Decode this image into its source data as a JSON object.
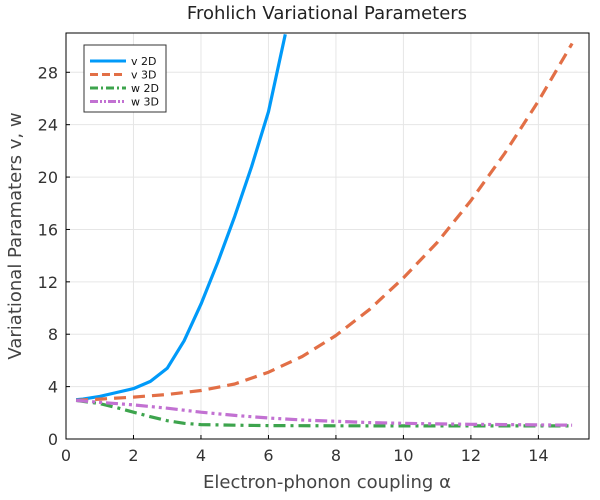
{
  "chart_data": {
    "type": "line",
    "title": "Frohlich Variational Parameters",
    "xlabel": "Electron-phonon coupling α",
    "ylabel": "Variational Paramaters v, w",
    "xlim": [
      0,
      15.5
    ],
    "ylim": [
      0,
      31
    ],
    "xticks": [
      0,
      2,
      4,
      6,
      8,
      10,
      12,
      14
    ],
    "yticks": [
      0,
      4,
      8,
      12,
      16,
      20,
      24,
      28
    ],
    "grid": true,
    "legend_position": "top-left",
    "series": [
      {
        "name": "v 2D",
        "color": "#009af9",
        "style": "solid",
        "x": [
          0.3,
          0.5,
          1.0,
          1.5,
          2.0,
          2.5,
          3.0,
          3.5,
          4.0,
          4.5,
          5.0,
          5.5,
          6.0,
          6.5
        ],
        "y": [
          3.0,
          3.05,
          3.25,
          3.55,
          3.85,
          4.4,
          5.4,
          7.5,
          10.3,
          13.5,
          17.0,
          20.8,
          25.0,
          30.9
        ]
      },
      {
        "name": "v 3D",
        "color": "#e26f46",
        "style": "dash",
        "x": [
          0.3,
          1,
          2,
          3,
          4,
          5,
          6,
          7,
          8,
          9,
          10,
          11,
          12,
          13,
          14,
          15
        ],
        "y": [
          2.95,
          3.05,
          3.2,
          3.4,
          3.7,
          4.2,
          5.1,
          6.3,
          7.9,
          9.9,
          12.3,
          15.0,
          18.2,
          21.8,
          25.8,
          30.2
        ]
      },
      {
        "name": "w 2D",
        "color": "#3da44d",
        "style": "dashdot",
        "x": [
          0.3,
          1,
          1.5,
          2,
          2.5,
          3,
          3.5,
          4,
          5,
          6,
          8,
          10,
          12,
          14,
          15
        ],
        "y": [
          2.95,
          2.7,
          2.4,
          2.05,
          1.7,
          1.4,
          1.2,
          1.1,
          1.05,
          1.02,
          1.01,
          1.0,
          1.0,
          1.0,
          1.0
        ]
      },
      {
        "name": "w 3D",
        "color": "#c271d2",
        "style": "dashdotdot",
        "x": [
          0.3,
          1,
          2,
          3,
          4,
          5,
          6,
          7,
          8,
          9,
          10,
          11,
          12,
          13,
          14,
          15
        ],
        "y": [
          2.95,
          2.8,
          2.6,
          2.35,
          2.05,
          1.8,
          1.6,
          1.45,
          1.35,
          1.25,
          1.2,
          1.15,
          1.12,
          1.1,
          1.08,
          1.05
        ]
      }
    ]
  }
}
